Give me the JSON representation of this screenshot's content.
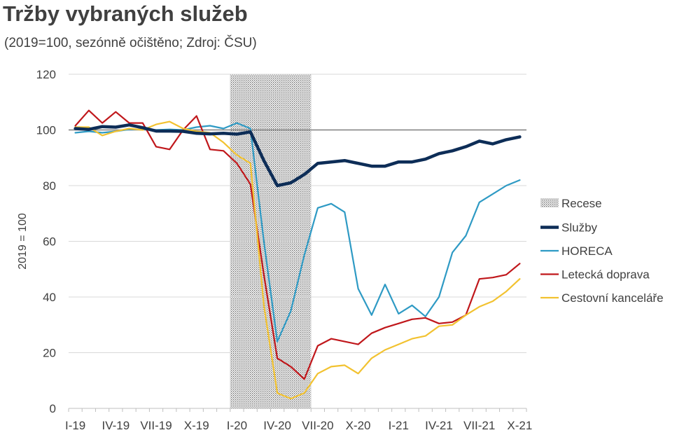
{
  "header": {
    "title": "Tržby vybraných služeb",
    "subtitle": "(2019=100, sezónně očištěno; Zdroj: ČSU)"
  },
  "chart_data": {
    "type": "line",
    "title": "Tržby vybraných služeb",
    "subtitle": "(2019=100, sezónně očištěno; Zdroj: ČSU)",
    "ylabel": "2019 = 100",
    "xlabel": "",
    "ylim": [
      0,
      120
    ],
    "yticks": [
      0,
      20,
      40,
      60,
      80,
      100,
      120
    ],
    "grid": "horizontal",
    "reference_line": 100,
    "legend_position": "right",
    "x": [
      "I-19",
      "II-19",
      "III-19",
      "IV-19",
      "V-19",
      "VI-19",
      "VII-19",
      "VIII-19",
      "IX-19",
      "X-19",
      "XI-19",
      "XII-19",
      "I-20",
      "II-20",
      "III-20",
      "IV-20",
      "V-20",
      "VI-20",
      "VII-20",
      "VIII-20",
      "IX-20",
      "X-20",
      "XI-20",
      "XII-20",
      "I-21",
      "II-21",
      "III-21",
      "IV-21",
      "V-21",
      "VI-21",
      "VII-21",
      "VIII-21",
      "IX-21",
      "X-21"
    ],
    "xtick_labels": [
      "I-19",
      "IV-19",
      "VII-19",
      "X-19",
      "I-20",
      "IV-20",
      "VII-20",
      "X-20",
      "I-21",
      "IV-21",
      "VII-21",
      "X-21"
    ],
    "recession": {
      "label": "Recese",
      "start": "I-20",
      "end": "VI-20"
    },
    "series": [
      {
        "name": "Služby",
        "color": "#0d2d57",
        "values": [
          100.5,
          100.2,
          101.2,
          101.0,
          101.8,
          100.8,
          99.6,
          99.6,
          99.5,
          98.8,
          98.6,
          98.8,
          98.5,
          99.3,
          89.0,
          80.0,
          81.0,
          84.0,
          88.0,
          88.5,
          89.0,
          88.0,
          87.0,
          87.0,
          88.5,
          88.5,
          89.5,
          91.5,
          92.5,
          94.0,
          96.0,
          95.0,
          96.5,
          97.5
        ]
      },
      {
        "name": "HORECA",
        "color": "#2e9ac4",
        "values": [
          99.0,
          99.5,
          99.0,
          99.5,
          100.2,
          100.2,
          100.0,
          100.2,
          100.0,
          101.0,
          101.5,
          100.5,
          102.5,
          100.5,
          60.0,
          24.0,
          35.0,
          55.0,
          72.0,
          73.5,
          70.5,
          43.0,
          33.5,
          44.5,
          34.0,
          37.0,
          33.0,
          40.0,
          56.0,
          62.0,
          74.0,
          77.0,
          80.0,
          82.0
        ]
      },
      {
        "name": "Letecká doprava",
        "color": "#c0171b",
        "values": [
          101.5,
          107.0,
          102.5,
          106.5,
          102.5,
          102.5,
          94.0,
          93.0,
          100.0,
          105.0,
          93.0,
          92.5,
          88.0,
          80.5,
          48.0,
          18.0,
          15.0,
          10.5,
          22.5,
          25.0,
          24.0,
          23.0,
          27.0,
          29.0,
          30.5,
          32.0,
          32.5,
          30.5,
          31.0,
          33.5,
          46.5,
          47.0,
          48.0,
          52.0
        ]
      },
      {
        "name": "Cestovní kanceláře",
        "color": "#f2c230",
        "values": [
          101.0,
          101.0,
          98.0,
          99.5,
          100.5,
          100.0,
          102.0,
          103.0,
          100.5,
          99.5,
          99.0,
          95.5,
          91.0,
          88.0,
          37.0,
          5.5,
          3.5,
          5.5,
          12.5,
          15.0,
          15.5,
          12.5,
          18.0,
          21.0,
          23.0,
          25.0,
          26.0,
          29.5,
          30.0,
          33.5,
          36.5,
          38.5,
          42.0,
          46.5
        ]
      }
    ]
  },
  "legend": {
    "recession_label": "Recese",
    "items": [
      "Služby",
      "HORECA",
      "Letecká doprava",
      "Cestovní kanceláře"
    ]
  }
}
